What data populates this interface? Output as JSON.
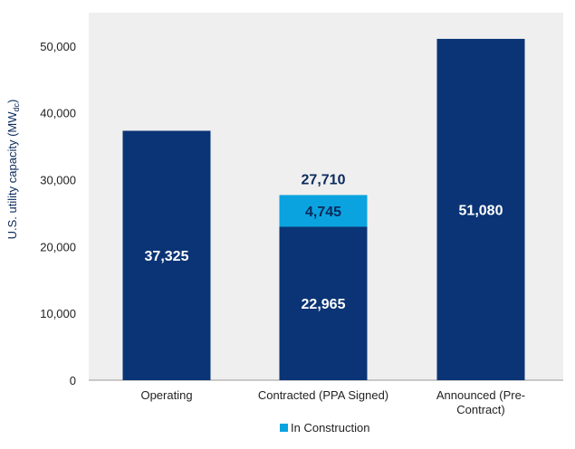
{
  "chart_data": {
    "type": "bar",
    "stacked": true,
    "categories": [
      [
        "Operating"
      ],
      [
        "Contracted (PPA Signed)"
      ],
      [
        "Announced (Pre-",
        "Contract)"
      ]
    ],
    "series": [
      {
        "values": [
          37325,
          22965,
          51080
        ],
        "color": "#0a3475"
      },
      {
        "name": "In Construction",
        "values": [
          0,
          4745,
          0
        ],
        "color": "#0aa3e0"
      }
    ],
    "data_labels": {
      "segment": [
        "37,325",
        "22,965",
        "51,080"
      ],
      "construction": "4,745",
      "total": "27,710"
    },
    "ylabel": "U.S. utility capacity (MW",
    "ylabel_sub": "dc",
    "ylabel_close": ")",
    "ylim": [
      0,
      55000
    ],
    "yticks": [
      "0",
      "10,000",
      "20,000",
      "30,000",
      "40,000",
      "50,000"
    ],
    "ytick_values": [
      0,
      10000,
      20000,
      30000,
      40000,
      50000
    ],
    "plot_background": "#efefef",
    "grid": false,
    "legend_position": "bottom-center"
  }
}
